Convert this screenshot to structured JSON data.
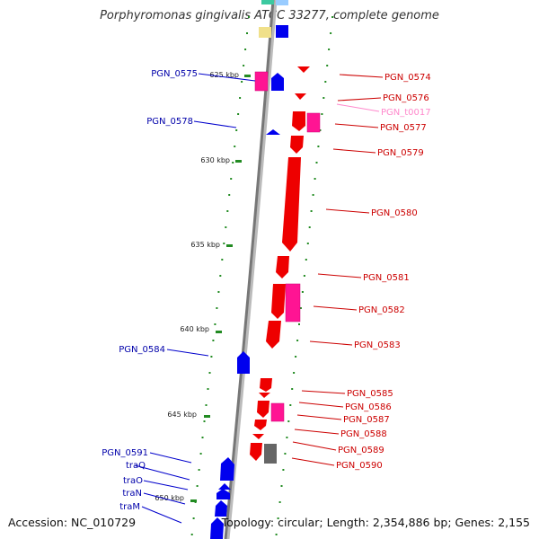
{
  "title": "Porphyromonas gingivalis ATCC 33277, complete genome",
  "accession": "Accession: NC_010729",
  "summary": "Topology: circular; Length: 2,354,886 bp; Genes: 2,155",
  "colors": {
    "forward_gene": "#0000ee",
    "reverse_gene": "#ee0000",
    "reverse_pseudo": "#ff1493",
    "trna": "#ff88cc",
    "backbone": "#888888",
    "scale": "#228b22"
  },
  "scale_marks": [
    "625 kbp",
    "630 kbp",
    "635 kbp",
    "640 kbp",
    "645 kbp",
    "650 kbp"
  ],
  "forward_labels": [
    "PGN_0575",
    "PGN_0578",
    "PGN_0584",
    "PGN_0591",
    "traQ",
    "traO",
    "traN",
    "traM"
  ],
  "reverse_labels": [
    "PGN_0574",
    "PGN_0576",
    "PGN_t0017",
    "PGN_0577",
    "PGN_0579",
    "PGN_0580",
    "PGN_0581",
    "PGN_0582",
    "PGN_0583",
    "PGN_0585",
    "PGN_0586",
    "PGN_0587",
    "PGN_0588",
    "PGN_0589",
    "PGN_0590"
  ]
}
